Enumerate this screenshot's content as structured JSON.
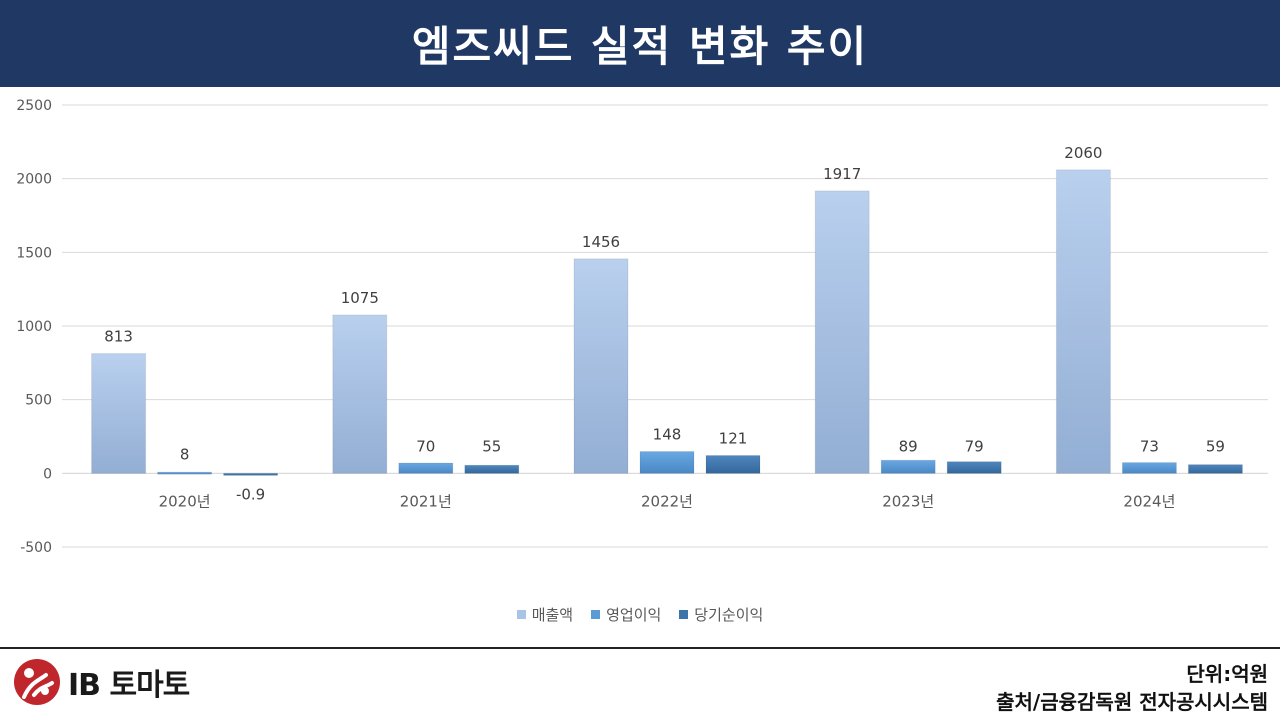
{
  "header": {
    "title": "엠즈씨드 실적 변화 추이"
  },
  "footer": {
    "logo_text": "IB 토마토",
    "unit": "단위:억원",
    "source": "출처/금융감독원 전자공시시스템"
  },
  "colors": {
    "header_bg": "#1f3864",
    "series_매출액": "#a9c4e6",
    "series_영업이익": "#5b9bd5",
    "series_당기순이익": "#3e75a8",
    "logo_red": "#c0272d"
  },
  "chart_data": {
    "type": "bar",
    "title": "",
    "categories": [
      "2020년",
      "2021년",
      "2022년",
      "2023년",
      "2024년"
    ],
    "series": [
      {
        "name": "매출액",
        "values": [
          813,
          1075,
          1456,
          1917,
          2060
        ],
        "labels": [
          "813",
          "1075",
          "1456",
          "1917",
          "2060"
        ]
      },
      {
        "name": "영업이익",
        "values": [
          8,
          70,
          148,
          89,
          73
        ],
        "labels": [
          "8",
          "70",
          "148",
          "89",
          "73"
        ]
      },
      {
        "name": "당기순이익",
        "values": [
          -0.9,
          55,
          121,
          79,
          59
        ],
        "labels": [
          "-0.9",
          "55",
          "121",
          "79",
          "59"
        ]
      }
    ],
    "ylim": [
      -500,
      2500
    ],
    "yticks": [
      -500,
      0,
      500,
      1000,
      1500,
      2000,
      2500
    ],
    "ytick_labels": [
      "-500",
      "0",
      "500",
      "1000",
      "1500",
      "2000",
      "2500"
    ],
    "grid": true,
    "legend": "bottom"
  }
}
